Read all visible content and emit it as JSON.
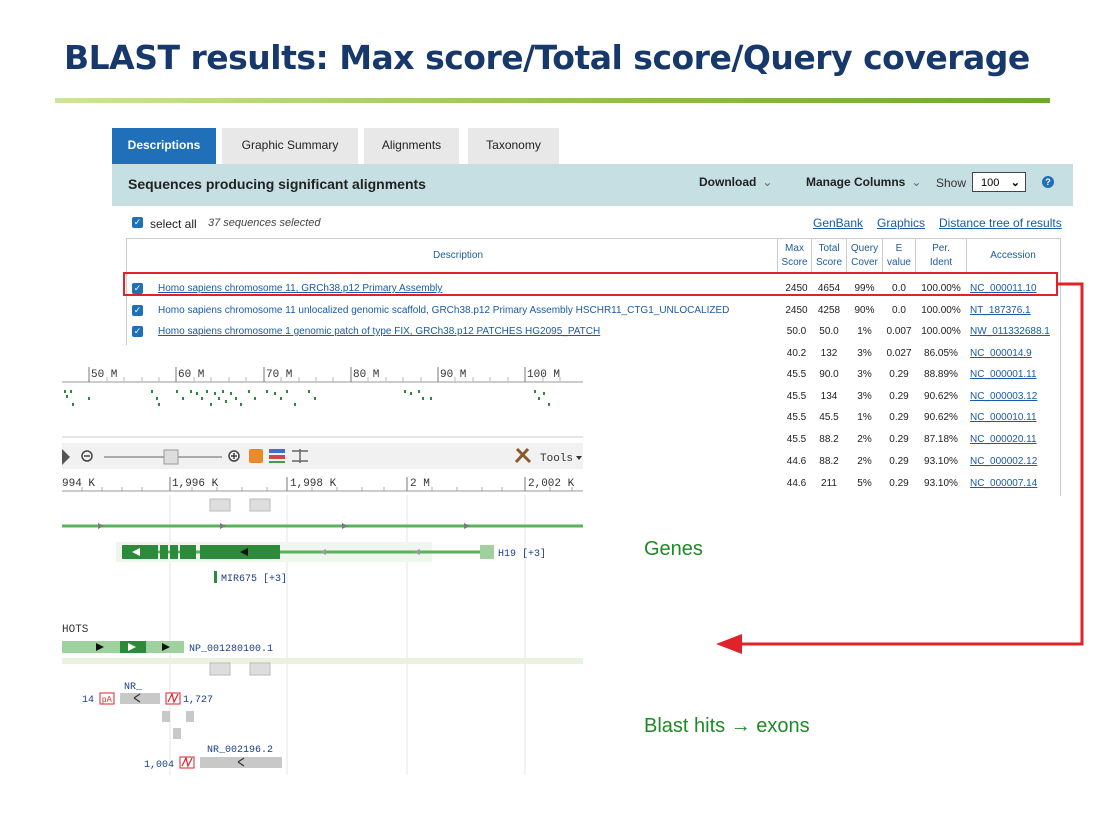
{
  "slide": {
    "title": "BLAST results: Max score/Total score/Query coverage"
  },
  "tabs": [
    {
      "label": "Descriptions",
      "active": true
    },
    {
      "label": "Graphic Summary",
      "active": false
    },
    {
      "label": "Alignments",
      "active": false
    },
    {
      "label": "Taxonomy",
      "active": false
    }
  ],
  "header": {
    "title": "Sequences producing significant alignments",
    "download": "Download",
    "manage_columns": "Manage Columns",
    "show_label": "Show",
    "show_value": "100"
  },
  "selection": {
    "select_all": "select all",
    "count": "37 sequences selected"
  },
  "links": {
    "genbank": "GenBank",
    "graphics": "Graphics",
    "distance_tree": "Distance tree of results"
  },
  "columns": {
    "description": "Description",
    "max_score": [
      "Max",
      "Score"
    ],
    "total_score": [
      "Total",
      "Score"
    ],
    "query_cover": [
      "Query",
      "Cover"
    ],
    "e_value": [
      "E",
      "value"
    ],
    "per_ident": [
      "Per.",
      "Ident"
    ],
    "accession": "Accession"
  },
  "rows": [
    {
      "desc": "Homo sapiens chromosome 11, GRCh38.p12 Primary Assembly",
      "max": "2450",
      "total": "4654",
      "cover": "99%",
      "e": "0.0",
      "ident": "100.00%",
      "acc": "NC_000011.10"
    },
    {
      "desc": "Homo sapiens chromosome 11 unlocalized genomic scaffold, GRCh38.p12 Primary Assembly HSCHR11_CTG1_UNLOCALIZED",
      "max": "2450",
      "total": "4258",
      "cover": "90%",
      "e": "0.0",
      "ident": "100.00%",
      "acc": "NT_187376.1"
    },
    {
      "desc": "Homo sapiens chromosome 1 genomic patch of type FIX, GRCh38.p12 PATCHES HG2095_PATCH",
      "max": "50.0",
      "total": "50.0",
      "cover": "1%",
      "e": "0.007",
      "ident": "100.00%",
      "acc": "NW_011332688.1"
    },
    {
      "desc": "",
      "max": "40.2",
      "total": "132",
      "cover": "3%",
      "e": "0.027",
      "ident": "86.05%",
      "acc": "NC_000014.9"
    },
    {
      "desc": "",
      "max": "45.5",
      "total": "90.0",
      "cover": "3%",
      "e": "0.29",
      "ident": "88.89%",
      "acc": "NC_000001.11"
    },
    {
      "desc": "",
      "max": "45.5",
      "total": "134",
      "cover": "3%",
      "e": "0.29",
      "ident": "90.62%",
      "acc": "NC_000003.12"
    },
    {
      "desc": "",
      "max": "45.5",
      "total": "45.5",
      "cover": "1%",
      "e": "0.29",
      "ident": "90.62%",
      "acc": "NC_000010.11"
    },
    {
      "desc": "",
      "max": "45.5",
      "total": "88.2",
      "cover": "2%",
      "e": "0.29",
      "ident": "87.18%",
      "acc": "NC_000020.11"
    },
    {
      "desc": "",
      "max": "44.6",
      "total": "88.2",
      "cover": "2%",
      "e": "0.29",
      "ident": "93.10%",
      "acc": "NC_000002.12"
    },
    {
      "desc": "",
      "max": "44.6",
      "total": "211",
      "cover": "5%",
      "e": "0.29",
      "ident": "93.10%",
      "acc": "NC_000007.14"
    }
  ],
  "genome_viewer": {
    "overview_ticks": [
      "50 M",
      "60 M",
      "70 M",
      "80 M",
      "90 M",
      "100 M"
    ],
    "tools_label": "Tools",
    "zoom_ticks": [
      "994 K",
      "1,996 K",
      "1,998 K",
      "2 M",
      "2,002 K"
    ],
    "gene_h19": "H19 [+3]",
    "gene_mir675": "MIR675 [+3]",
    "track_label": "HOTS",
    "protein": "NP_001280100.1",
    "nr_label": "NR_",
    "num_14": "14",
    "num_1727": "1,727",
    "nr_002196": "NR_002196.2",
    "num_1004": "1,004"
  },
  "annotations": {
    "genes": "Genes",
    "blast_hits": "Blast hits → exons"
  },
  "colors": {
    "accent_blue": "#1f70b8",
    "highlight_red": "#e0222a",
    "label_green": "#1e8a26",
    "title_navy": "#17386b"
  }
}
